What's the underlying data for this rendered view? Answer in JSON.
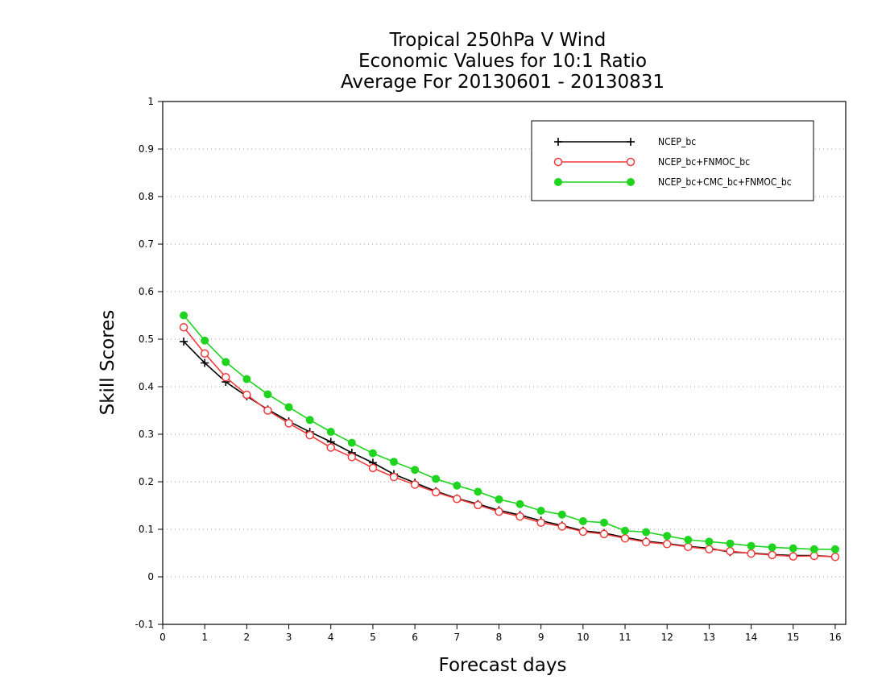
{
  "chart_data": {
    "type": "line",
    "title_lines": [
      "Tropical 250hPa V Wind",
      "Economic Values for 10:1 Ratio",
      "Average For 20130601 - 20130831"
    ],
    "xlabel": "Forecast days",
    "ylabel": "Skill Scores",
    "xlim": [
      0,
      16.25
    ],
    "ylim": [
      -0.1,
      1
    ],
    "x_ticks": [
      0,
      1,
      2,
      3,
      4,
      5,
      6,
      7,
      8,
      9,
      10,
      11,
      12,
      13,
      14,
      15,
      16
    ],
    "x_tick_labels": [
      "0",
      "1",
      "2",
      "3",
      "4",
      "5",
      "6",
      "7",
      "8",
      "9",
      "10",
      "11",
      "12",
      "13",
      "14",
      "15",
      "16"
    ],
    "y_ticks": [
      -0.1,
      0,
      0.1,
      0.2,
      0.3,
      0.4,
      0.5,
      0.6,
      0.7,
      0.8,
      0.9,
      1
    ],
    "y_tick_labels": [
      "-0.1",
      "0",
      "0.1",
      "0.2",
      "0.3",
      "0.4",
      "0.5",
      "0.6",
      "0.7",
      "0.8",
      "0.9",
      "1"
    ],
    "grid": "horizontal dotted",
    "legend_position": "top-right",
    "x": [
      0.5,
      1,
      1.5,
      2,
      2.5,
      3,
      3.5,
      4,
      4.5,
      5,
      5.5,
      6,
      6.5,
      7,
      7.5,
      8,
      8.5,
      9,
      9.5,
      10,
      10.5,
      11,
      11.5,
      12,
      12.5,
      13,
      13.5,
      14,
      14.5,
      15,
      15.5,
      16
    ],
    "series": [
      {
        "name": "NCEP_bc",
        "color": "#000000",
        "marker": "plus",
        "values": [
          0.495,
          0.45,
          0.41,
          0.38,
          0.352,
          0.327,
          0.305,
          0.284,
          0.261,
          0.24,
          0.216,
          0.198,
          0.18,
          0.165,
          0.153,
          0.14,
          0.13,
          0.118,
          0.108,
          0.097,
          0.092,
          0.083,
          0.075,
          0.07,
          0.064,
          0.06,
          0.052,
          0.05,
          0.047,
          0.045,
          0.045,
          0.042
        ]
      },
      {
        "name": "NCEP_bc+FNMOC_bc",
        "color": "#ee3b3b",
        "marker": "open-circle",
        "values": [
          0.525,
          0.47,
          0.42,
          0.383,
          0.35,
          0.323,
          0.298,
          0.272,
          0.252,
          0.229,
          0.21,
          0.194,
          0.178,
          0.164,
          0.151,
          0.137,
          0.127,
          0.114,
          0.106,
          0.095,
          0.09,
          0.081,
          0.073,
          0.069,
          0.063,
          0.058,
          0.054,
          0.049,
          0.046,
          0.043,
          0.044,
          0.042
        ]
      },
      {
        "name": "NCEP_bc+CMC_bc+FNMOC_bc",
        "color": "#1ed41e",
        "marker": "filled-circle",
        "values": [
          0.55,
          0.497,
          0.452,
          0.416,
          0.384,
          0.357,
          0.33,
          0.305,
          0.282,
          0.26,
          0.242,
          0.225,
          0.206,
          0.192,
          0.179,
          0.163,
          0.153,
          0.139,
          0.131,
          0.117,
          0.114,
          0.097,
          0.094,
          0.086,
          0.078,
          0.074,
          0.07,
          0.065,
          0.062,
          0.06,
          0.058,
          0.058
        ]
      }
    ]
  }
}
